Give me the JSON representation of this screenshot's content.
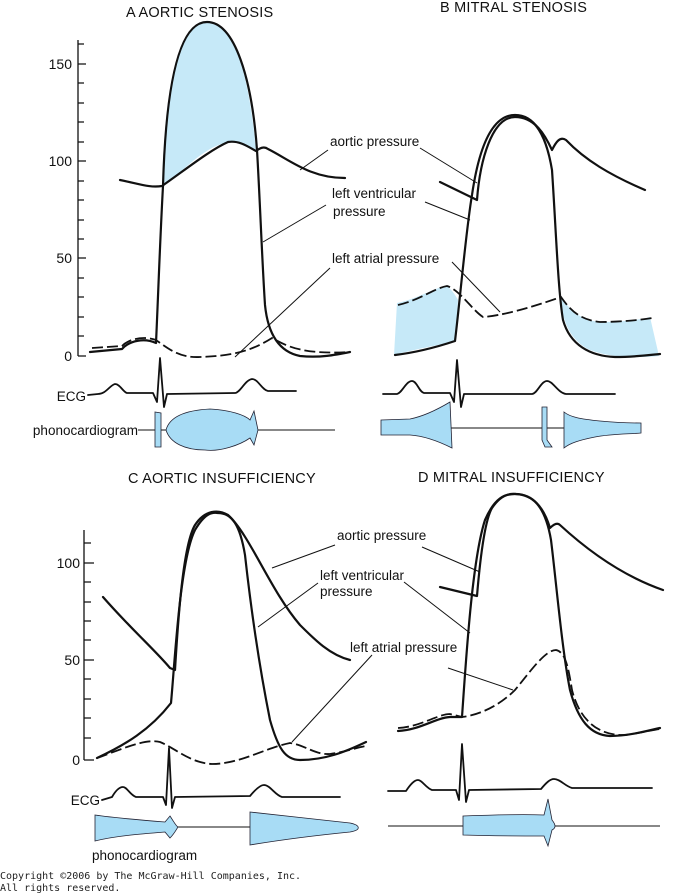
{
  "panels": {
    "a": {
      "title": "A   AORTIC STENOSIS",
      "y_ticks": [
        "150",
        "100",
        "50",
        "0"
      ]
    },
    "b": {
      "title": "B   MITRAL STENOSIS"
    },
    "c": {
      "title": "C   AORTIC INSUFFICIENCY",
      "y_ticks": [
        "100",
        "50",
        "0"
      ]
    },
    "d": {
      "title": "D   MITRAL INSUFFICIENCY"
    }
  },
  "labels": {
    "aortic_pressure": "aortic pressure",
    "left_ventricular_1": "left ventricular",
    "left_ventricular_2": "pressure",
    "left_atrial_pressure": "left atrial pressure",
    "ecg": "ECG",
    "phonocardiogram": "phonocardiogram"
  },
  "colors": {
    "shaded_area": "#c6e9f8",
    "phonocardiogram_fill": "#a8dcf5",
    "curves": "#111111"
  },
  "copyright": {
    "line1": "Copyright ©2006 by The McGraw-Hill Companies, Inc.",
    "line2": "All rights reserved."
  }
}
